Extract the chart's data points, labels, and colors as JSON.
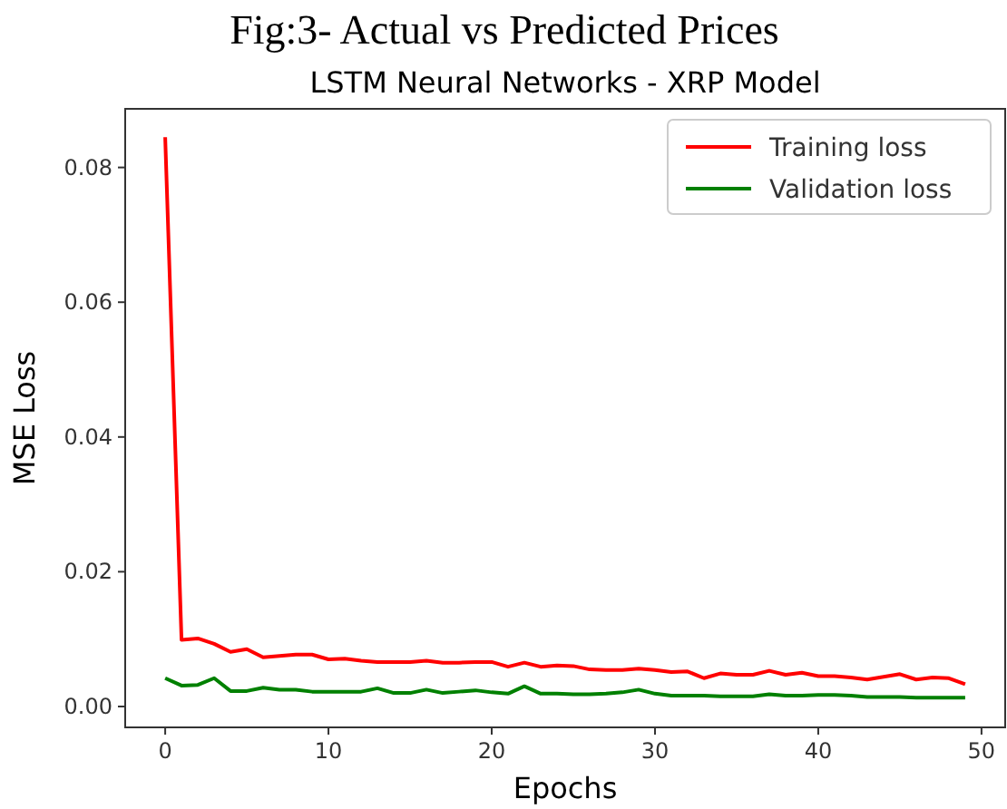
{
  "chart_data": {
    "type": "line",
    "title": "Fig:3- Actual vs Predicted Prices",
    "subtitle": "LSTM Neural Networks - XRP Model",
    "xlabel": "Epochs",
    "ylabel": "MSE Loss",
    "x": [
      0,
      1,
      2,
      3,
      4,
      5,
      6,
      7,
      8,
      9,
      10,
      11,
      12,
      13,
      14,
      15,
      16,
      17,
      18,
      19,
      20,
      21,
      22,
      23,
      24,
      25,
      26,
      27,
      28,
      29,
      30,
      31,
      32,
      33,
      34,
      35,
      36,
      37,
      38,
      39,
      40,
      41,
      42,
      43,
      44,
      45,
      46,
      47,
      48,
      49
    ],
    "series": [
      {
        "name": "Training loss",
        "color": "#ff0000",
        "values": [
          0.0845,
          0.0099,
          0.0101,
          0.0093,
          0.0081,
          0.0085,
          0.0073,
          0.0075,
          0.0077,
          0.0077,
          0.007,
          0.0071,
          0.0068,
          0.0066,
          0.0066,
          0.0066,
          0.0068,
          0.0065,
          0.0065,
          0.0066,
          0.0066,
          0.0059,
          0.0065,
          0.0059,
          0.0061,
          0.006,
          0.0055,
          0.0054,
          0.0054,
          0.0056,
          0.0054,
          0.0051,
          0.0052,
          0.0042,
          0.0049,
          0.0047,
          0.0047,
          0.0053,
          0.0047,
          0.005,
          0.0045,
          0.0045,
          0.0043,
          0.004,
          0.0044,
          0.0048,
          0.004,
          0.0043,
          0.0042,
          0.0033
        ]
      },
      {
        "name": "Validation loss",
        "color": "#008000",
        "values": [
          0.0042,
          0.0031,
          0.0032,
          0.0042,
          0.0023,
          0.0023,
          0.0028,
          0.0025,
          0.0025,
          0.0022,
          0.0022,
          0.0022,
          0.0022,
          0.0027,
          0.002,
          0.002,
          0.0025,
          0.002,
          0.0022,
          0.0024,
          0.0021,
          0.0019,
          0.003,
          0.0019,
          0.0019,
          0.0018,
          0.0018,
          0.0019,
          0.0021,
          0.0025,
          0.0019,
          0.0016,
          0.0016,
          0.0016,
          0.0015,
          0.0015,
          0.0015,
          0.0018,
          0.0016,
          0.0016,
          0.0017,
          0.0017,
          0.0016,
          0.0014,
          0.0014,
          0.0014,
          0.0013,
          0.0013,
          0.0013,
          0.0013
        ]
      }
    ],
    "xlim": [
      -2.45,
      51.45
    ],
    "ylim": [
      -0.0031,
      0.0887
    ],
    "xticks": [
      0,
      10,
      20,
      30,
      40,
      50
    ],
    "yticks": [
      {
        "value": 0,
        "label": "0.00"
      },
      {
        "value": 0.02,
        "label": "0.02"
      },
      {
        "value": 0.04,
        "label": "0.04"
      },
      {
        "value": 0.06,
        "label": "0.06"
      },
      {
        "value": 0.08,
        "label": "0.08"
      }
    ],
    "legend": "top right",
    "grid": false,
    "marker": "none",
    "line_style": "solid"
  }
}
